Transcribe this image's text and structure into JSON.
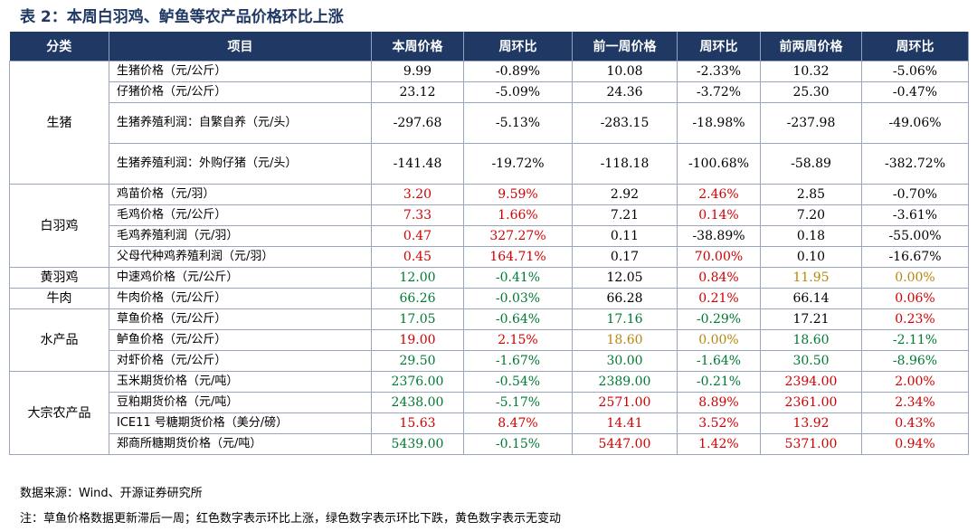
{
  "title": "表 2：本周白羽鸡、鲈鱼等农产品价格环比上涨",
  "columns": [
    "分类",
    "项目",
    "本周价格",
    "周环比",
    "前一周价格",
    "周环比",
    "前两周价格",
    "周环比"
  ],
  "categories": [
    "生猪",
    "白羽鸡",
    "黄羽鸡",
    "牛肉",
    "水产品",
    "大宗农产品"
  ],
  "rows": [
    {
      "item": "生猪价格（元/公斤）",
      "v": [
        "9.99",
        "-0.89%",
        "10.08",
        "-2.33%",
        "10.32",
        "-5.06%"
      ],
      "c": [
        "k",
        "k",
        "k",
        "k",
        "k",
        "k"
      ]
    },
    {
      "item": "仔猪价格（元/公斤）",
      "v": [
        "23.12",
        "-5.09%",
        "24.36",
        "-3.72%",
        "25.30",
        "-0.47%"
      ],
      "c": [
        "k",
        "k",
        "k",
        "k",
        "k",
        "k"
      ]
    },
    {
      "item": "生猪养殖利润：自繁自养（元/头）",
      "v": [
        "-297.68",
        "-5.13%",
        "-283.15",
        "-18.98%",
        "-237.98",
        "-49.06%"
      ],
      "c": [
        "k",
        "k",
        "k",
        "k",
        "k",
        "k"
      ]
    },
    {
      "item": "生猪养殖利润：外购仔猪（元/头）",
      "v": [
        "-141.48",
        "-19.72%",
        "-118.18",
        "-100.68%",
        "-58.89",
        "-382.72%"
      ],
      "c": [
        "k",
        "k",
        "k",
        "k",
        "k",
        "k"
      ]
    },
    {
      "item": "鸡苗价格（元/羽）",
      "v": [
        "3.20",
        "9.59%",
        "2.92",
        "2.46%",
        "2.85",
        "-0.70%"
      ],
      "c": [
        "r",
        "r",
        "k",
        "r",
        "k",
        "k"
      ]
    },
    {
      "item": "毛鸡价格（元/公斤）",
      "v": [
        "7.33",
        "1.66%",
        "7.21",
        "0.14%",
        "7.20",
        "-3.61%"
      ],
      "c": [
        "r",
        "r",
        "k",
        "r",
        "k",
        "k"
      ]
    },
    {
      "item": "毛鸡养殖利润（元/羽）",
      "v": [
        "0.47",
        "327.27%",
        "0.11",
        "-38.89%",
        "0.18",
        "-55.00%"
      ],
      "c": [
        "r",
        "r",
        "k",
        "k",
        "k",
        "k"
      ]
    },
    {
      "item": "父母代种鸡养殖利润（元/羽）",
      "v": [
        "0.45",
        "164.71%",
        "0.17",
        "70.00%",
        "0.10",
        "-16.67%"
      ],
      "c": [
        "r",
        "r",
        "k",
        "r",
        "k",
        "k"
      ]
    },
    {
      "item": "中速鸡价格（元/公斤）",
      "v": [
        "12.00",
        "-0.41%",
        "12.05",
        "0.84%",
        "11.95",
        "0.00%"
      ],
      "c": [
        "g",
        "g",
        "k",
        "r",
        "y",
        "y"
      ]
    },
    {
      "item": "牛肉价格（元/公斤）",
      "v": [
        "66.26",
        "-0.03%",
        "66.28",
        "0.21%",
        "66.14",
        "0.06%"
      ],
      "c": [
        "g",
        "g",
        "k",
        "r",
        "k",
        "r"
      ]
    },
    {
      "item": "草鱼价格（元/公斤）",
      "v": [
        "17.05",
        "-0.64%",
        "17.16",
        "-0.29%",
        "17.21",
        "0.23%"
      ],
      "c": [
        "g",
        "g",
        "g",
        "g",
        "k",
        "r"
      ]
    },
    {
      "item": "鲈鱼价格（元/公斤）",
      "v": [
        "19.00",
        "2.15%",
        "18.60",
        "0.00%",
        "18.60",
        "-2.11%"
      ],
      "c": [
        "r",
        "r",
        "y",
        "y",
        "g",
        "g"
      ]
    },
    {
      "item": "对虾价格（元/公斤）",
      "v": [
        "29.50",
        "-1.67%",
        "30.00",
        "-1.64%",
        "30.50",
        "-8.96%"
      ],
      "c": [
        "g",
        "g",
        "g",
        "g",
        "g",
        "g"
      ]
    },
    {
      "item": "玉米期货价格（元/吨）",
      "v": [
        "2376.00",
        "-0.54%",
        "2389.00",
        "-0.21%",
        "2394.00",
        "2.00%"
      ],
      "c": [
        "g",
        "g",
        "g",
        "g",
        "r",
        "r"
      ]
    },
    {
      "item": "豆粕期货价格（元/吨）",
      "v": [
        "2438.00",
        "-5.17%",
        "2571.00",
        "8.89%",
        "2361.00",
        "2.34%"
      ],
      "c": [
        "g",
        "g",
        "r",
        "r",
        "r",
        "r"
      ]
    },
    {
      "item": "ICE11 号糖期货价格（美分/磅）",
      "v": [
        "15.63",
        "8.47%",
        "14.41",
        "3.52%",
        "13.92",
        "0.43%"
      ],
      "c": [
        "r",
        "r",
        "r",
        "r",
        "r",
        "r"
      ]
    },
    {
      "item": "郑商所糖期货价格（元/吨）",
      "v": [
        "5439.00",
        "-0.15%",
        "5447.00",
        "1.42%",
        "5371.00",
        "0.94%"
      ],
      "c": [
        "g",
        "g",
        "r",
        "r",
        "r",
        "r"
      ]
    }
  ],
  "footnotes": {
    "source": "数据来源：Wind、开源证券研究所",
    "note": "注：草鱼价格数据更新滞后一周；红色数字表示环比上涨，绿色数字表示环比下跌，黄色数字表示无变动"
  },
  "colors": {
    "header": "#1f3864",
    "red": "#d00000",
    "green": "#007a33",
    "yellow": "#b8860b"
  }
}
